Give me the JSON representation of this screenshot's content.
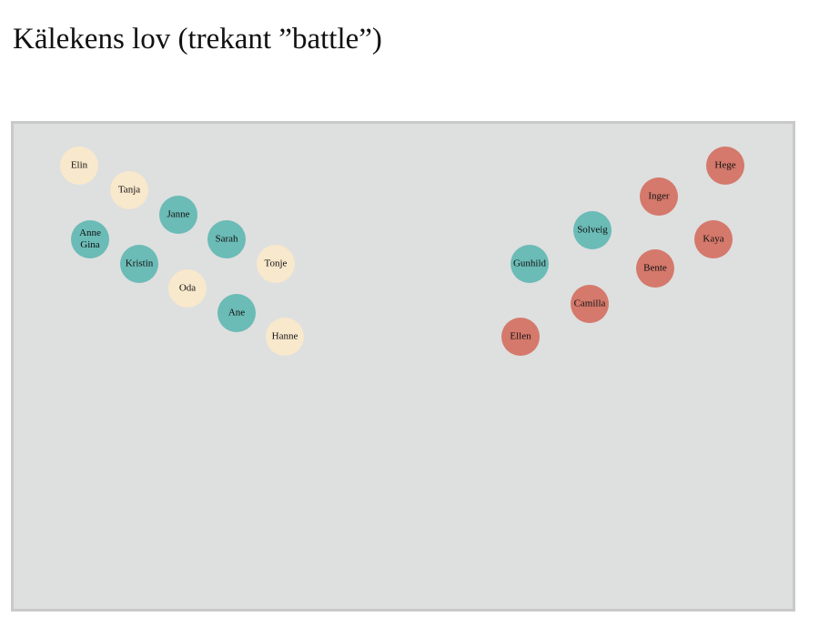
{
  "header": {
    "title": "Kälekens lov (trekant ”battle”)"
  },
  "nodes": [
    {
      "lines": [
        "Elin"
      ]
    },
    {
      "lines": [
        "Tanja"
      ]
    },
    {
      "lines": [
        "Janne"
      ]
    },
    {
      "lines": [
        "Anne",
        "Gina"
      ]
    },
    {
      "lines": [
        "Sarah"
      ]
    },
    {
      "lines": [
        "Tonje"
      ]
    },
    {
      "lines": [
        "Kristin"
      ]
    },
    {
      "lines": [
        "Oda"
      ]
    },
    {
      "lines": [
        "Ane"
      ]
    },
    {
      "lines": [
        "Hanne"
      ]
    },
    {
      "lines": [
        "Hege"
      ]
    },
    {
      "lines": [
        "Inger"
      ]
    },
    {
      "lines": [
        "Solveig"
      ]
    },
    {
      "lines": [
        "Kaya"
      ]
    },
    {
      "lines": [
        "Gunhild"
      ]
    },
    {
      "lines": [
        "Bente"
      ]
    },
    {
      "lines": [
        "Camilla"
      ]
    },
    {
      "lines": [
        "Ellen"
      ]
    }
  ]
}
